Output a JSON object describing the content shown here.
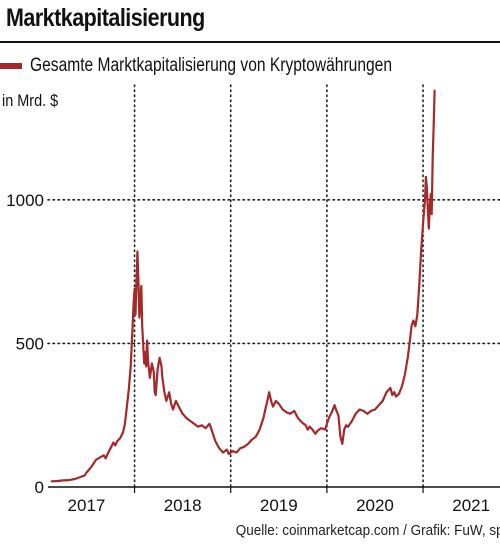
{
  "page": {
    "title": "Marktkapitalisierung",
    "unit_label": "in Mrd. $",
    "source": "Quelle: coinmarketcap.com / Grafik: FuW, sp"
  },
  "chart_data": {
    "type": "line",
    "title": "Marktkapitalisierung",
    "xlabel": "",
    "ylabel": "in Mrd. $",
    "legend_position": "top-left",
    "grid": "dotted",
    "series_color": "#a5282b",
    "xlim": [
      2016.6,
      2021.3
    ],
    "ylim": [
      0,
      1400
    ],
    "x_tick_labels": [
      {
        "label": "2017",
        "x": 2017.0
      },
      {
        "label": "2018",
        "x": 2018.0
      },
      {
        "label": "2019",
        "x": 2019.0
      },
      {
        "label": "2020",
        "x": 2020.0
      },
      {
        "label": "2021",
        "x": 2021.0
      }
    ],
    "x_separators": [
      2017.5,
      2018.5,
      2019.5,
      2020.5
    ],
    "y_ticks": [
      {
        "label": "0",
        "value": 0
      },
      {
        "label": "500",
        "value": 500
      },
      {
        "label": "1000",
        "value": 1000
      }
    ],
    "series": [
      {
        "name": "Gesamte Marktkapitalisierung von Kryptowährungen",
        "points": [
          [
            2016.64,
            20
          ],
          [
            2016.7,
            21
          ],
          [
            2016.76,
            23
          ],
          [
            2016.82,
            24
          ],
          [
            2016.88,
            28
          ],
          [
            2016.94,
            35
          ],
          [
            2016.98,
            40
          ],
          [
            2017.0,
            50
          ],
          [
            2017.05,
            70
          ],
          [
            2017.1,
            95
          ],
          [
            2017.15,
            105
          ],
          [
            2017.18,
            110
          ],
          [
            2017.2,
            100
          ],
          [
            2017.22,
            115
          ],
          [
            2017.25,
            135
          ],
          [
            2017.28,
            155
          ],
          [
            2017.3,
            145
          ],
          [
            2017.32,
            160
          ],
          [
            2017.35,
            170
          ],
          [
            2017.38,
            190
          ],
          [
            2017.4,
            220
          ],
          [
            2017.42,
            280
          ],
          [
            2017.44,
            340
          ],
          [
            2017.46,
            420
          ],
          [
            2017.48,
            560
          ],
          [
            2017.49,
            640
          ],
          [
            2017.5,
            690
          ],
          [
            2017.51,
            600
          ],
          [
            2017.52,
            720
          ],
          [
            2017.53,
            820
          ],
          [
            2017.54,
            720
          ],
          [
            2017.55,
            590
          ],
          [
            2017.56,
            640
          ],
          [
            2017.57,
            700
          ],
          [
            2017.58,
            560
          ],
          [
            2017.6,
            430
          ],
          [
            2017.61,
            470
          ],
          [
            2017.62,
            420
          ],
          [
            2017.63,
            510
          ],
          [
            2017.64,
            440
          ],
          [
            2017.66,
            380
          ],
          [
            2017.68,
            430
          ],
          [
            2017.7,
            400
          ],
          [
            2017.71,
            330
          ],
          [
            2017.72,
            320
          ],
          [
            2017.74,
            410
          ],
          [
            2017.76,
            450
          ],
          [
            2017.78,
            420
          ],
          [
            2017.79,
            380
          ],
          [
            2017.81,
            330
          ],
          [
            2017.83,
            300
          ],
          [
            2017.86,
            330
          ],
          [
            2017.88,
            290
          ],
          [
            2017.9,
            270
          ],
          [
            2017.93,
            300
          ],
          [
            2017.96,
            280
          ],
          [
            2018.0,
            255
          ],
          [
            2018.04,
            240
          ],
          [
            2018.08,
            230
          ],
          [
            2018.12,
            220
          ],
          [
            2018.16,
            210
          ],
          [
            2018.2,
            215
          ],
          [
            2018.24,
            205
          ],
          [
            2018.28,
            220
          ],
          [
            2018.3,
            200
          ],
          [
            2018.34,
            160
          ],
          [
            2018.38,
            135
          ],
          [
            2018.42,
            120
          ],
          [
            2018.46,
            130
          ],
          [
            2018.48,
            115
          ],
          [
            2018.52,
            125
          ],
          [
            2018.56,
            120
          ],
          [
            2018.6,
            135
          ],
          [
            2018.64,
            140
          ],
          [
            2018.68,
            150
          ],
          [
            2018.72,
            165
          ],
          [
            2018.76,
            175
          ],
          [
            2018.8,
            200
          ],
          [
            2018.84,
            240
          ],
          [
            2018.86,
            270
          ],
          [
            2018.88,
            300
          ],
          [
            2018.9,
            330
          ],
          [
            2018.92,
            300
          ],
          [
            2018.94,
            280
          ],
          [
            2018.97,
            300
          ],
          [
            2019.0,
            290
          ],
          [
            2019.04,
            270
          ],
          [
            2019.08,
            260
          ],
          [
            2019.12,
            255
          ],
          [
            2019.16,
            265
          ],
          [
            2019.2,
            240
          ],
          [
            2019.24,
            225
          ],
          [
            2019.28,
            215
          ],
          [
            2019.3,
            200
          ],
          [
            2019.32,
            210
          ],
          [
            2019.35,
            200
          ],
          [
            2019.38,
            185
          ],
          [
            2019.4,
            195
          ],
          [
            2019.44,
            205
          ],
          [
            2019.48,
            200
          ],
          [
            2019.52,
            240
          ],
          [
            2019.55,
            260
          ],
          [
            2019.58,
            285
          ],
          [
            2019.6,
            265
          ],
          [
            2019.62,
            250
          ],
          [
            2019.64,
            175
          ],
          [
            2019.66,
            150
          ],
          [
            2019.68,
            200
          ],
          [
            2019.7,
            215
          ],
          [
            2019.72,
            210
          ],
          [
            2019.76,
            230
          ],
          [
            2019.8,
            255
          ],
          [
            2019.84,
            270
          ],
          [
            2019.88,
            265
          ],
          [
            2019.92,
            255
          ],
          [
            2019.96,
            265
          ],
          [
            2020.0,
            270
          ],
          [
            2020.04,
            285
          ],
          [
            2020.08,
            300
          ],
          [
            2020.12,
            330
          ],
          [
            2020.16,
            345
          ],
          [
            2020.18,
            320
          ],
          [
            2020.2,
            330
          ],
          [
            2020.22,
            315
          ],
          [
            2020.25,
            325
          ],
          [
            2020.28,
            350
          ],
          [
            2020.31,
            390
          ],
          [
            2020.34,
            450
          ],
          [
            2020.36,
            500
          ],
          [
            2020.38,
            560
          ],
          [
            2020.4,
            580
          ],
          [
            2020.42,
            560
          ],
          [
            2020.44,
            600
          ],
          [
            2020.46,
            700
          ],
          [
            2020.48,
            820
          ],
          [
            2020.5,
            920
          ],
          [
            2020.52,
            1000
          ],
          [
            2020.53,
            1080
          ],
          [
            2020.54,
            1040
          ],
          [
            2020.55,
            960
          ],
          [
            2020.56,
            900
          ],
          [
            2020.57,
            980
          ],
          [
            2020.58,
            1020
          ],
          [
            2020.59,
            950
          ],
          [
            2020.6,
            1150
          ],
          [
            2020.61,
            1250
          ],
          [
            2020.62,
            1380
          ]
        ]
      }
    ]
  }
}
